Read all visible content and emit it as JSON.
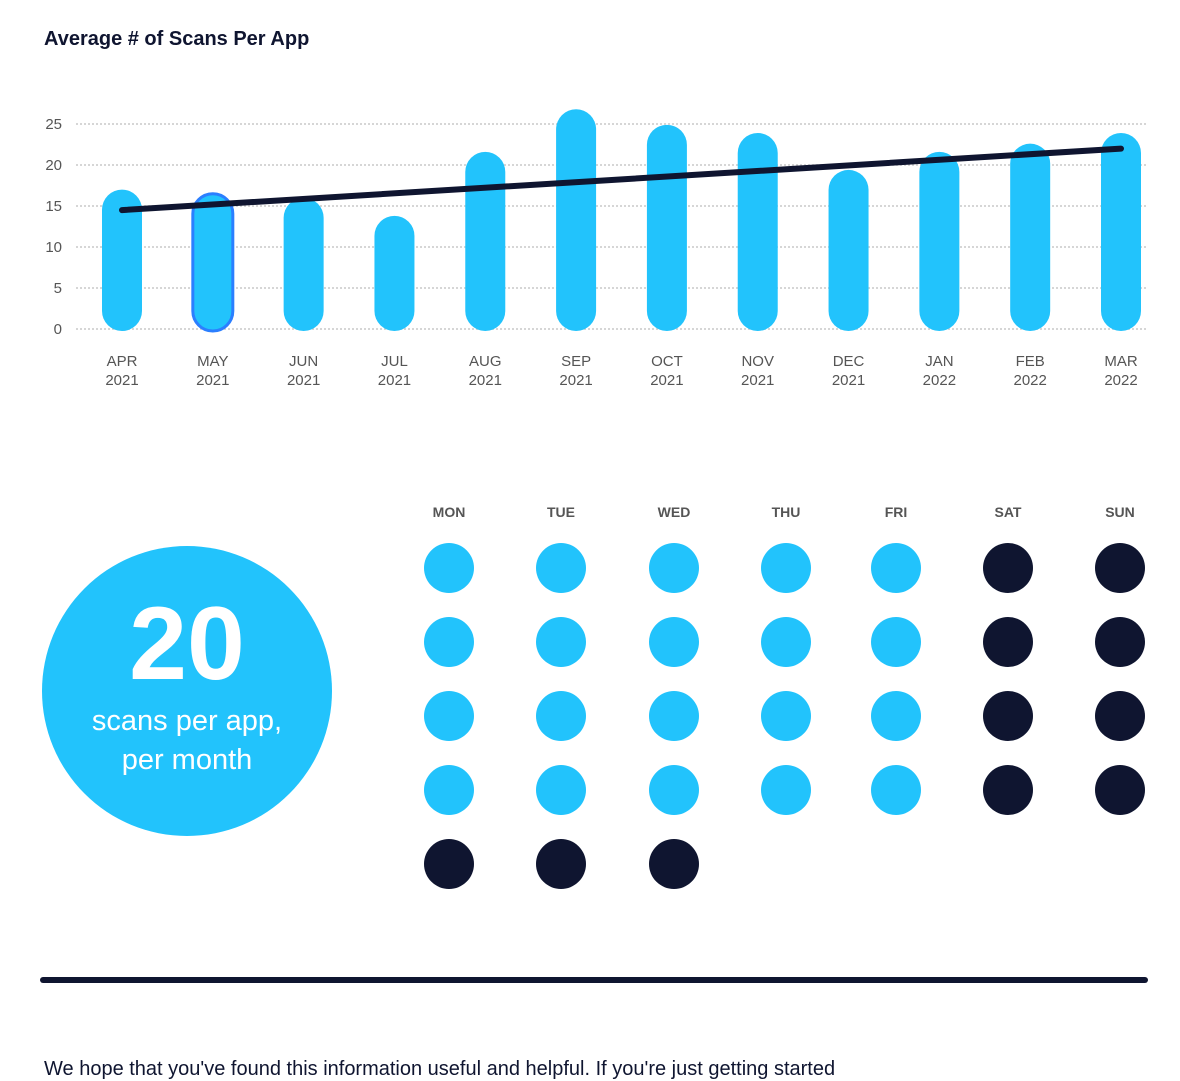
{
  "chart_data": {
    "type": "bar",
    "title": "Average # of Scans Per App",
    "categories": [
      [
        "APR",
        "2021"
      ],
      [
        "MAY",
        "2021"
      ],
      [
        "JUN",
        "2021"
      ],
      [
        "JUL",
        "2021"
      ],
      [
        "AUG",
        "2021"
      ],
      [
        "SEP",
        "2021"
      ],
      [
        "OCT",
        "2021"
      ],
      [
        "NOV",
        "2021"
      ],
      [
        "DEC",
        "2021"
      ],
      [
        "JAN",
        "2022"
      ],
      [
        "FEB",
        "2022"
      ],
      [
        "MAR",
        "2022"
      ]
    ],
    "values": [
      17,
      16.5,
      16,
      13.8,
      21.6,
      26.8,
      24.9,
      23.9,
      19.4,
      21.6,
      22.6,
      23.9
    ],
    "highlighted_index": 1,
    "trendline": {
      "start": 14.5,
      "end": 22
    },
    "yticks": [
      0,
      5,
      10,
      15,
      20,
      25
    ],
    "ylim": [
      0,
      25
    ],
    "grid": true,
    "colors": {
      "bar": "#22c3fc",
      "highlight_border": "#2b7fff",
      "trend": "#0f1530"
    }
  },
  "summary": {
    "number": "20",
    "caption_line1": "scans per app,",
    "caption_line2": "per month"
  },
  "calendar": {
    "days": [
      "MON",
      "TUE",
      "WED",
      "THU",
      "FRI",
      "SAT",
      "SUN"
    ],
    "weeks": [
      [
        1,
        1,
        1,
        1,
        1,
        0,
        0
      ],
      [
        1,
        1,
        1,
        1,
        1,
        0,
        0
      ],
      [
        1,
        1,
        1,
        1,
        1,
        0,
        0
      ],
      [
        1,
        1,
        1,
        1,
        1,
        0,
        0
      ],
      [
        0,
        0,
        0
      ]
    ],
    "colors": {
      "weekday": "#22c3fc",
      "other": "#0f1530"
    }
  },
  "footer": {
    "text": "We hope that you've found this information useful and helpful. If you're just getting started"
  }
}
